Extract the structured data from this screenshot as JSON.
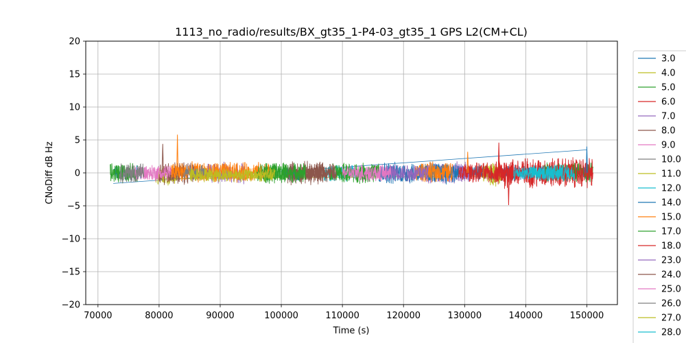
{
  "chart_data": {
    "type": "line",
    "title": "1113_no_radio/results/BX_gt35_1-P4-03_gt35_1 GPS L2(CM+CL)",
    "xlabel": "Time (s)",
    "ylabel": "CNoDiff dB Hz",
    "xlim": [
      68000,
      155000
    ],
    "ylim": [
      -20,
      20
    ],
    "xticks": [
      70000,
      80000,
      90000,
      100000,
      110000,
      120000,
      130000,
      140000,
      150000
    ],
    "xtick_labels": [
      "70000",
      "80000",
      "90000",
      "100000",
      "110000",
      "120000",
      "130000",
      "140000",
      "150000"
    ],
    "yticks": [
      -20,
      -15,
      -10,
      -5,
      0,
      5,
      10,
      15,
      20
    ],
    "ytick_labels": [
      "−20",
      "−15",
      "−10",
      "−5",
      "0",
      "5",
      "10",
      "15",
      "20"
    ],
    "grid": true,
    "legend_position": "right, outside plot area",
    "series": [
      {
        "name": "3.0",
        "color": "#1f77b4",
        "segments": [
          [
            72500,
            77000
          ],
          [
            100000,
            103000
          ],
          [
            129000,
            150500
          ]
        ],
        "amplitude": 1.0,
        "mean": 0.0
      },
      {
        "name": "4.0",
        "color": "#bcbd22",
        "segments": [
          [
            79500,
            83000
          ],
          [
            134000,
            136000
          ]
        ],
        "amplitude": 1.3,
        "mean": -0.5
      },
      {
        "name": "5.0",
        "color": "#2ca02c",
        "segments": [
          [
            72000,
            76500
          ],
          [
            97000,
            101000
          ],
          [
            143000,
            151000
          ]
        ],
        "amplitude": 1.3,
        "mean": 0.0
      },
      {
        "name": "6.0",
        "color": "#d62728",
        "segments": [
          [
            135000,
            151000
          ]
        ],
        "amplitude": 2.0,
        "mean": 0.0
      },
      {
        "name": "7.0",
        "color": "#9467bd",
        "segments": [
          [
            88000,
            94000
          ],
          [
            124000,
            131000
          ]
        ],
        "amplitude": 1.4,
        "mean": 0.0
      },
      {
        "name": "8.0",
        "color": "#8c564b",
        "segments": [
          [
            80000,
            86000
          ],
          [
            101000,
            107000
          ]
        ],
        "amplitude": 1.5,
        "mean": 0.0
      },
      {
        "name": "9.0",
        "color": "#e377c2",
        "segments": [
          [
            76000,
            82000
          ],
          [
            113000,
            118000
          ]
        ],
        "amplitude": 1.1,
        "mean": 0.0
      },
      {
        "name": "10.0",
        "color": "#7f7f7f",
        "segments": [
          [
            73500,
            77500
          ]
        ],
        "amplitude": 1.3,
        "mean": 0.0
      },
      {
        "name": "11.0",
        "color": "#bcbd22",
        "segments": [
          [
            133000,
            136000
          ]
        ],
        "amplitude": 1.2,
        "mean": 0.0
      },
      {
        "name": "12.0",
        "color": "#17becf",
        "segments": [
          [
            107000,
            112000
          ],
          [
            141000,
            148000
          ]
        ],
        "amplitude": 1.1,
        "mean": 0.0
      },
      {
        "name": "14.0",
        "color": "#1f77b4",
        "segments": [
          [
            116000,
            129000
          ]
        ],
        "amplitude": 1.4,
        "mean": 0.0
      },
      {
        "name": "15.0",
        "color": "#ff7f0e",
        "segments": [
          [
            82000,
            98000
          ],
          [
            122000,
            128000
          ]
        ],
        "amplitude": 1.3,
        "mean": 0.1
      },
      {
        "name": "17.0",
        "color": "#2ca02c",
        "segments": [
          [
            96000,
            104000
          ],
          [
            108000,
            116000
          ]
        ],
        "amplitude": 1.3,
        "mean": 0.0
      },
      {
        "name": "18.0",
        "color": "#d62728",
        "segments": [
          [
            129000,
            138000
          ]
        ],
        "amplitude": 1.3,
        "mean": 0.0
      },
      {
        "name": "23.0",
        "color": "#9467bd",
        "segments": [
          [
            117000,
            124000
          ]
        ],
        "amplitude": 1.2,
        "mean": 0.0
      },
      {
        "name": "24.0",
        "color": "#8c564b",
        "segments": [
          [
            104000,
            109000
          ]
        ],
        "amplitude": 1.2,
        "mean": 0.0
      },
      {
        "name": "25.0",
        "color": "#e377c2",
        "segments": [
          [
            110000,
            118000
          ]
        ],
        "amplitude": 1.0,
        "mean": 0.0
      },
      {
        "name": "26.0",
        "color": "#7f7f7f",
        "segments": [
          [
            84000,
            88000
          ]
        ],
        "amplitude": 1.0,
        "mean": 0.0
      },
      {
        "name": "27.0",
        "color": "#bcbd22",
        "segments": [
          [
            85000,
            99000
          ]
        ],
        "amplitude": 0.9,
        "mean": -0.3
      },
      {
        "name": "28.0",
        "color": "#17becf",
        "segments": [
          [
            138000,
            146000
          ]
        ],
        "amplitude": 1.0,
        "mean": 0.0
      }
    ],
    "connector_lines": [
      {
        "color": "#1f77b4",
        "points": [
          [
            72500,
            -1.6
          ],
          [
            150000,
            3.5
          ]
        ]
      },
      {
        "color": "#bcbd22",
        "points": [
          [
            79500,
            -0.9
          ],
          [
            134000,
            -0.5
          ]
        ]
      }
    ],
    "spikes": [
      {
        "color": "#ff7f0e",
        "x": 83000,
        "y": 5.8
      },
      {
        "color": "#8c564b",
        "x": 80600,
        "y": 4.4
      },
      {
        "color": "#d62728",
        "x": 137200,
        "y": -4.9
      },
      {
        "color": "#d62728",
        "x": 135600,
        "y": 4.6
      },
      {
        "color": "#1f77b4",
        "x": 150000,
        "y": 4.0
      },
      {
        "color": "#ff7f0e",
        "x": 130500,
        "y": 3.2
      }
    ]
  },
  "legend": {
    "items": [
      {
        "label": "3.0",
        "color": "#1f77b4"
      },
      {
        "label": "4.0",
        "color": "#bcbd22"
      },
      {
        "label": "5.0",
        "color": "#2ca02c"
      },
      {
        "label": "6.0",
        "color": "#d62728"
      },
      {
        "label": "7.0",
        "color": "#9467bd"
      },
      {
        "label": "8.0",
        "color": "#8c564b"
      },
      {
        "label": "9.0",
        "color": "#e377c2"
      },
      {
        "label": "10.0",
        "color": "#7f7f7f"
      },
      {
        "label": "11.0",
        "color": "#bcbd22"
      },
      {
        "label": "12.0",
        "color": "#17becf"
      },
      {
        "label": "14.0",
        "color": "#1f77b4"
      },
      {
        "label": "15.0",
        "color": "#ff7f0e"
      },
      {
        "label": "17.0",
        "color": "#2ca02c"
      },
      {
        "label": "18.0",
        "color": "#d62728"
      },
      {
        "label": "23.0",
        "color": "#9467bd"
      },
      {
        "label": "24.0",
        "color": "#8c564b"
      },
      {
        "label": "25.0",
        "color": "#e377c2"
      },
      {
        "label": "26.0",
        "color": "#7f7f7f"
      },
      {
        "label": "27.0",
        "color": "#bcbd22"
      },
      {
        "label": "28.0",
        "color": "#17becf"
      }
    ]
  }
}
